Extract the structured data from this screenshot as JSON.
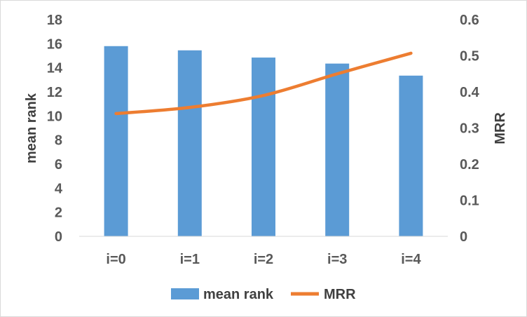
{
  "chart_data": {
    "type": "bar",
    "categories": [
      "i=0",
      "i=1",
      "i=2",
      "i=3",
      "i=4"
    ],
    "series": [
      {
        "name": "mean rank",
        "type": "bar",
        "axis": "left",
        "color": "#5b9bd5",
        "values": [
          15.8,
          15.45,
          14.85,
          14.35,
          13.35
        ]
      },
      {
        "name": "MRR",
        "type": "line",
        "axis": "right",
        "color": "#ed7d31",
        "values": [
          0.34,
          0.357,
          0.39,
          0.45,
          0.507
        ]
      }
    ],
    "ylabel": "mean rank",
    "ylabel_right": "MRR",
    "xlabel": "",
    "title": "",
    "ylim": [
      0,
      18
    ],
    "ylim_right": [
      0,
      0.6
    ],
    "yticks": [
      "0",
      "2",
      "4",
      "6",
      "8",
      "10",
      "12",
      "14",
      "16",
      "18"
    ],
    "yticks_right": [
      "0",
      "0.1",
      "0.2",
      "0.3",
      "0.4",
      "0.5",
      "0.6"
    ],
    "grid": false,
    "legend": "bottom"
  }
}
